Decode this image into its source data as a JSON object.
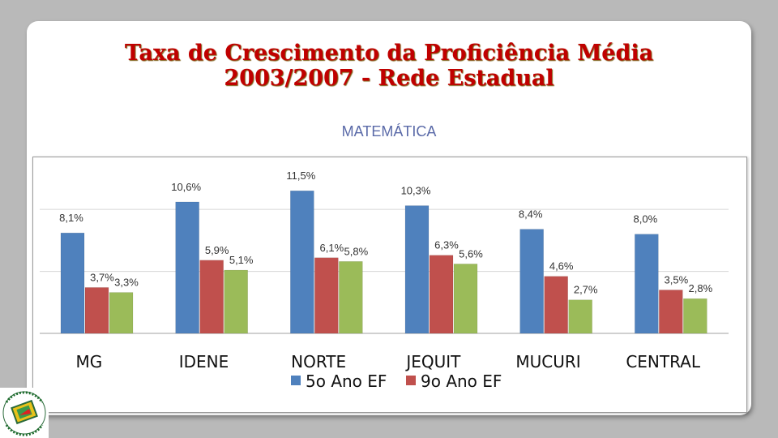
{
  "title_line1": "Taxa de Crescimento da Proficiência Média",
  "title_line2": "2003/2007  - Rede Estadual",
  "subtitle": "MATEMÁTICA",
  "logo_text": "Plano Decenal de Educação de Minas Gerais",
  "colors": {
    "series1": "#4f81bd",
    "series2": "#c0504d",
    "series3": "#9bbb59"
  },
  "chart_data": {
    "type": "bar",
    "categories": [
      "MG",
      "IDENE",
      "NORTE",
      "JEQUIT",
      "MUCURI",
      "CENTRAL"
    ],
    "series": [
      {
        "name": "5o Ano EF",
        "values": [
          8.1,
          10.6,
          11.5,
          10.3,
          8.4,
          8.0
        ],
        "labels": [
          "8,1%",
          "10,6%",
          "11,5%",
          "10,3%",
          "8,4%",
          "8,0%"
        ]
      },
      {
        "name": "9o Ano EF",
        "values": [
          3.7,
          5.9,
          6.1,
          6.3,
          4.6,
          3.5
        ],
        "labels": [
          "3,7%",
          "5,9%",
          "6,1%",
          "6,3%",
          "4,6%",
          "3,5%"
        ]
      },
      {
        "name": "",
        "values": [
          3.3,
          5.1,
          5.8,
          5.6,
          2.7,
          2.8
        ],
        "labels": [
          "3,3%",
          "5,1%",
          "5,8%",
          "5,6%",
          "2,7%",
          "2,8%"
        ]
      }
    ],
    "legend_entries": [
      "5o Ano EF",
      "9o Ano EF"
    ],
    "ylim": [
      0,
      14
    ],
    "grid": true,
    "legend_position": "bottom"
  }
}
